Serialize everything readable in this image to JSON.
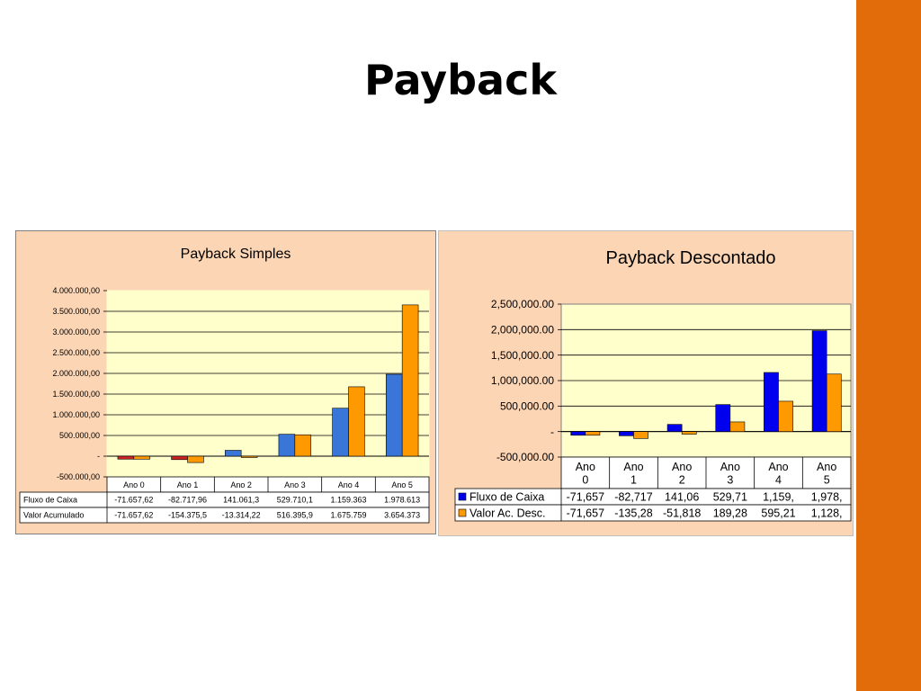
{
  "slide": {
    "title": "Payback"
  },
  "colors": {
    "accent_bar": "#e36c0a",
    "panel_bg": "#fcd5b4",
    "plot_bg": "#ffffcc"
  },
  "chart_data": [
    {
      "type": "bar",
      "title": "Payback Simples",
      "categories": [
        "Ano 0",
        "Ano 1",
        "Ano 2",
        "Ano 3",
        "Ano 4",
        "Ano 5"
      ],
      "y_ticks": [
        "4.000.000,00",
        "3.500.000,00",
        "3.000.000,00",
        "2.500.000,00",
        "2.000.000,00",
        "1.500.000,00",
        "1.000.000,00",
        "500.000,00",
        "-",
        "-500.000,00"
      ],
      "ylim": [
        -500000,
        4000000
      ],
      "grid": true,
      "legend": "table-below",
      "series": [
        {
          "name": "Fluxo de Caixa",
          "color": "#3a75d8",
          "values": [
            -71657.62,
            -82717.96,
            141061.3,
            529710.1,
            1159363,
            1978613
          ],
          "labels": [
            "-71.657,62",
            "-82.717,96",
            "141.061,3",
            "529.710,1",
            "1.159.363",
            "1.978.613"
          ]
        },
        {
          "name": "Valor Acumulado",
          "color": "#ff9900",
          "values": [
            -71657.62,
            -154375.5,
            -13314.22,
            516395.9,
            1675759,
            3654373
          ],
          "labels": [
            "-71.657,62",
            "-154.375,5",
            "-13.314,22",
            "516.395,9",
            "1.675.759",
            "3.654.373"
          ]
        }
      ]
    },
    {
      "type": "bar",
      "title": "Payback Descontado",
      "categories": [
        "Ano 0",
        "Ano 1",
        "Ano 2",
        "Ano 3",
        "Ano 4",
        "Ano 5"
      ],
      "y_ticks": [
        "2,500,000.00",
        "2,000,000.00",
        "1,500,000.00",
        "1,000,000.00",
        "500,000.00",
        "-",
        "-500,000.00"
      ],
      "ylim": [
        -500000,
        2500000
      ],
      "grid": true,
      "legend": "table-below",
      "series": [
        {
          "name": "Fluxo de Caixa",
          "color": "#0000ee",
          "values": [
            -71657,
            -82717,
            141060,
            529710,
            1159000,
            1978000
          ],
          "labels": [
            "-71,657",
            "-82,717",
            "141,06",
            "529,71",
            "1,159,",
            "1,978,"
          ]
        },
        {
          "name": "Valor Ac. Desc.",
          "color": "#ff9900",
          "values": [
            -71657,
            -135280,
            -51818,
            189280,
            595210,
            1128000
          ],
          "labels": [
            "-71,657",
            "-135,28",
            "-51,818",
            "189,28",
            "595,21",
            "1,128,"
          ]
        }
      ]
    }
  ]
}
